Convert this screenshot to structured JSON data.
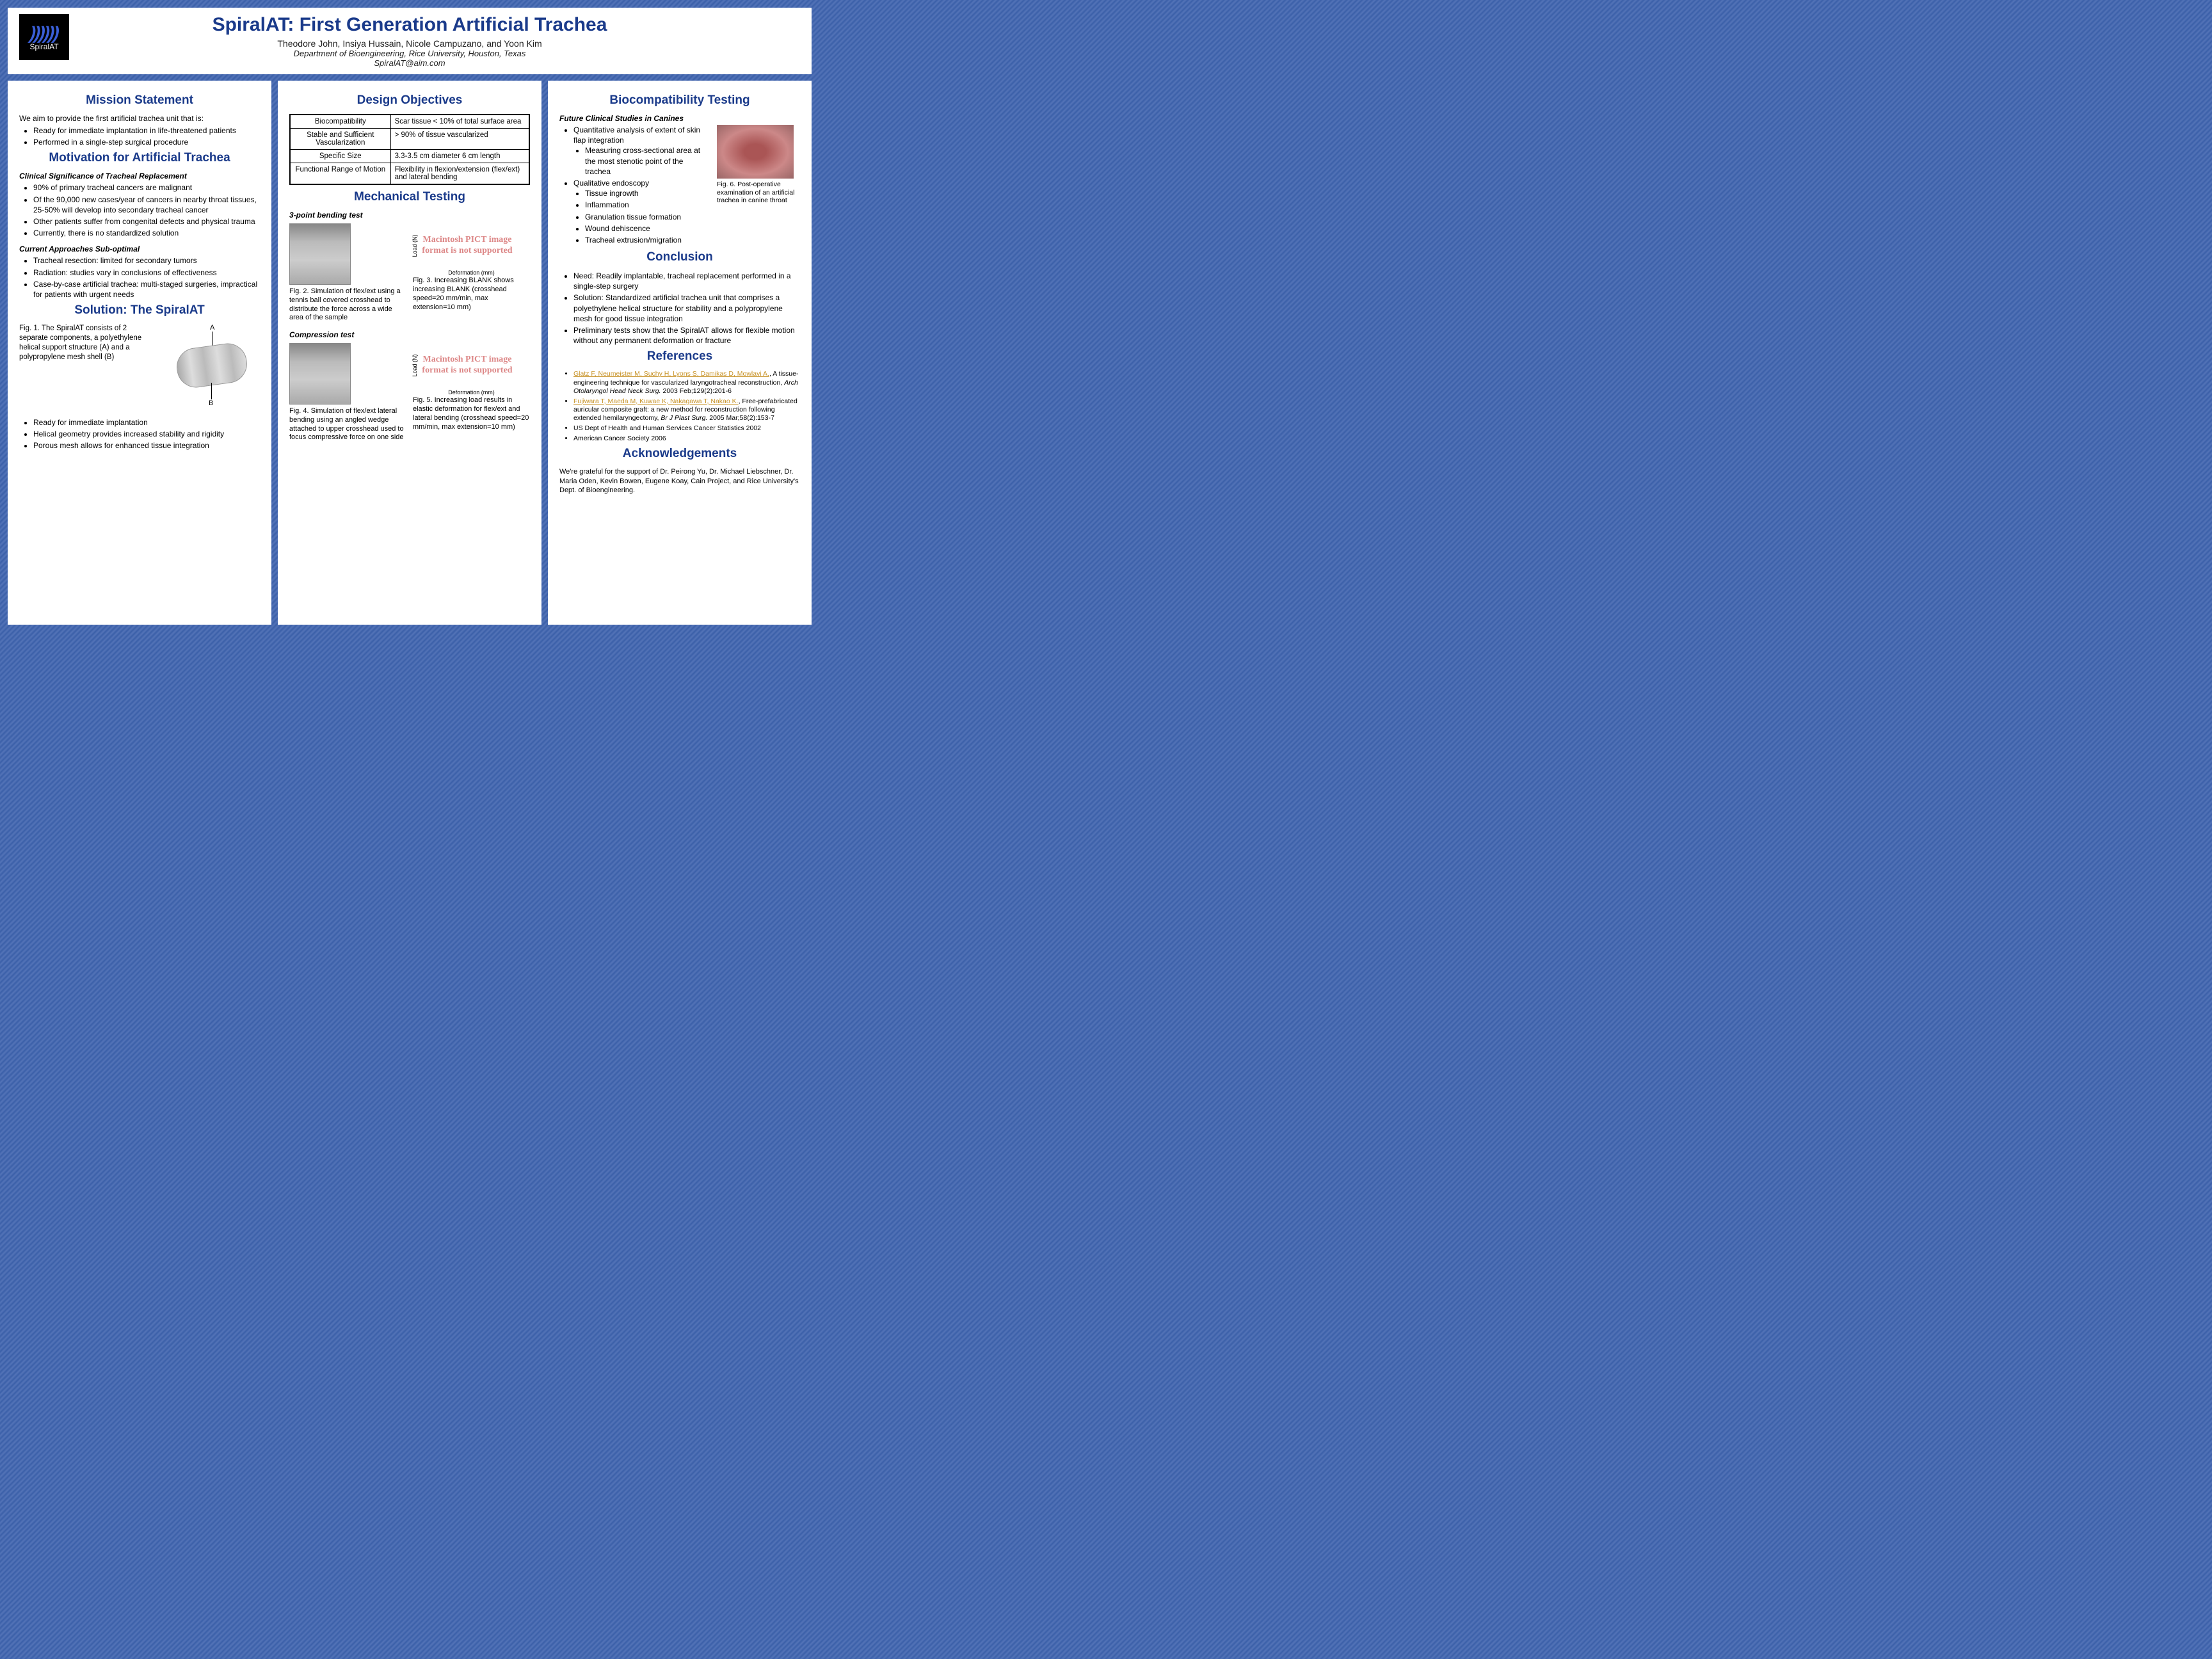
{
  "header": {
    "title": "SpiralAT: First Generation Artificial Trachea",
    "authors": "Theodore John, Insiya Hussain, Nicole Campuzano, and Yoon Kim",
    "department": "Department of Bioengineering, Rice University, Houston, Texas",
    "email": "SpiralAT@aim.com",
    "logo_text": "SpiralAT"
  },
  "col1": {
    "mission_heading": "Mission Statement",
    "mission_intro": "We aim to provide the first artificial trachea unit that is:",
    "mission_items": [
      "Ready for immediate implantation in life-threatened patients",
      "Performed in a single-step surgical procedure"
    ],
    "motivation_heading": "Motivation for Artificial Trachea",
    "clin_sig_head": "Clinical Significance of Tracheal Replacement",
    "clin_sig_items": [
      "90% of primary tracheal cancers are malignant",
      "Of the 90,000 new cases/year of cancers in nearby throat tissues, 25-50% will develop into secondary tracheal cancer",
      "Other patients suffer from congenital defects and physical trauma",
      "Currently, there is no standardized solution"
    ],
    "current_head": "Current Approaches Sub-optimal",
    "current_items": [
      "Tracheal resection: limited for secondary tumors",
      "Radiation: studies vary in conclusions of effectiveness",
      "Case-by-case artificial trachea: multi-staged surgeries, impractical for patients with urgent needs"
    ],
    "solution_heading": "Solution: The SpiralAT",
    "fig1_caption": "Fig. 1. The SpiralAT consists of 2 separate components, a polyethylene helical support structure (A) and a polypropylene mesh shell (B)",
    "label_a": "A",
    "label_b": "B",
    "solution_items": [
      "Ready for immediate implantation",
      "Helical geometry provides increased stability and rigidity",
      "Porous mesh allows for enhanced tissue integration"
    ]
  },
  "col2": {
    "design_heading": "Design Objectives",
    "objectives": [
      [
        "Biocompatibility",
        "Scar tissue < 10% of total surface area"
      ],
      [
        "Stable and Sufficient Vascularization",
        "> 90% of tissue vascularized"
      ],
      [
        "Specific Size",
        "3.3-3.5 cm diameter 6 cm length"
      ],
      [
        "Functional Range of Motion",
        "Flexibility in flexion/extension (flex/ext) and lateral bending"
      ]
    ],
    "mech_heading": "Mechanical Testing",
    "bend_head": "3-point bending test",
    "fig2_caption": "Fig. 2. Simulation of flex/ext using a tennis ball covered crosshead to distribute the force across a wide area of the sample",
    "fig3_caption": "Fig. 3. Increasing BLANK shows increasing BLANK (crosshead speed=20 mm/min, max extension=10 mm)",
    "comp_head": "Compression test",
    "fig4_caption": "Fig. 4. Simulation of flex/ext lateral bending using an angled wedge attached to upper crosshead used to focus compressive force on one side",
    "fig5_caption": "Fig. 5. Increasing load results in elastic deformation for flex/ext and lateral bending (crosshead speed=20 mm/min, max extension=10 mm)",
    "pict_text": "Macintosh PICT image format is not supported",
    "axis_y": "Load (N)",
    "axis_x": "Deformation (mm)"
  },
  "col3": {
    "bio_heading": "Biocompatibility Testing",
    "future_head": "Future Clinical Studies in Canines",
    "quant_item": "Quantitative analysis of extent of skin flap integration",
    "quant_sub": "Measuring cross-sectional area at the most stenotic point of the trachea",
    "qual_item": "Qualitative endoscopy",
    "qual_subs": [
      "Tissue ingrowth",
      "Inflammation",
      "Granulation tissue formation",
      "Wound dehiscence",
      "Tracheal extrusion/migration"
    ],
    "fig6_caption": "Fig. 6. Post-operative examination of an artificial trachea in canine throat",
    "conclusion_heading": "Conclusion",
    "conclusion_items": [
      "Need: Readily implantable, tracheal replacement performed in a single-step surgery",
      "Solution: Standardized artificial trachea unit that comprises a polyethylene helical structure for stability and a polypropylene mesh for good tissue integration",
      "Preliminary tests show that the SpiralAT allows for flexible motion without any permanent deformation or fracture"
    ],
    "refs_heading": "References",
    "ref1_link": "Glatz F, Neumeister M, Suchy H, Lyons S, Damikas D, Mowlavi A.",
    "ref1_text": ", A tissue-engineering technique for vascularized laryngotracheal reconstruction, ",
    "ref1_journal": "Arch Otolaryngol Head Neck Surg.",
    "ref1_cite": " 2003 Feb;129(2):201-6",
    "ref2_link": "Fujiwara T, Maeda M, Kuwae K, Nakagawa T, Nakao K.",
    "ref2_text": ", Free-prefabricated auricular composite graft: a new method for reconstruction following extended hemilaryngectomy, ",
    "ref2_journal": "Br J Plast Surg.",
    "ref2_cite": " 2005 Mar;58(2):153-7",
    "ref3": "US Dept of Health and Human Services Cancer Statistics 2002",
    "ref4": "American Cancer Society 2006",
    "ack_heading": "Acknowledgements",
    "ack_text": "We're grateful for the support of Dr. Peirong Yu, Dr. Michael Liebschner, Dr. Maria Oden, Kevin Bowen, Eugene Koay, Cain Project, and Rice University's Dept. of Bioengineering."
  },
  "colors": {
    "heading": "#1a3a8a",
    "background": "#3a5fa8",
    "panel": "#ffffff",
    "ref_link": "#c8942a",
    "pict_color": "#d88"
  }
}
